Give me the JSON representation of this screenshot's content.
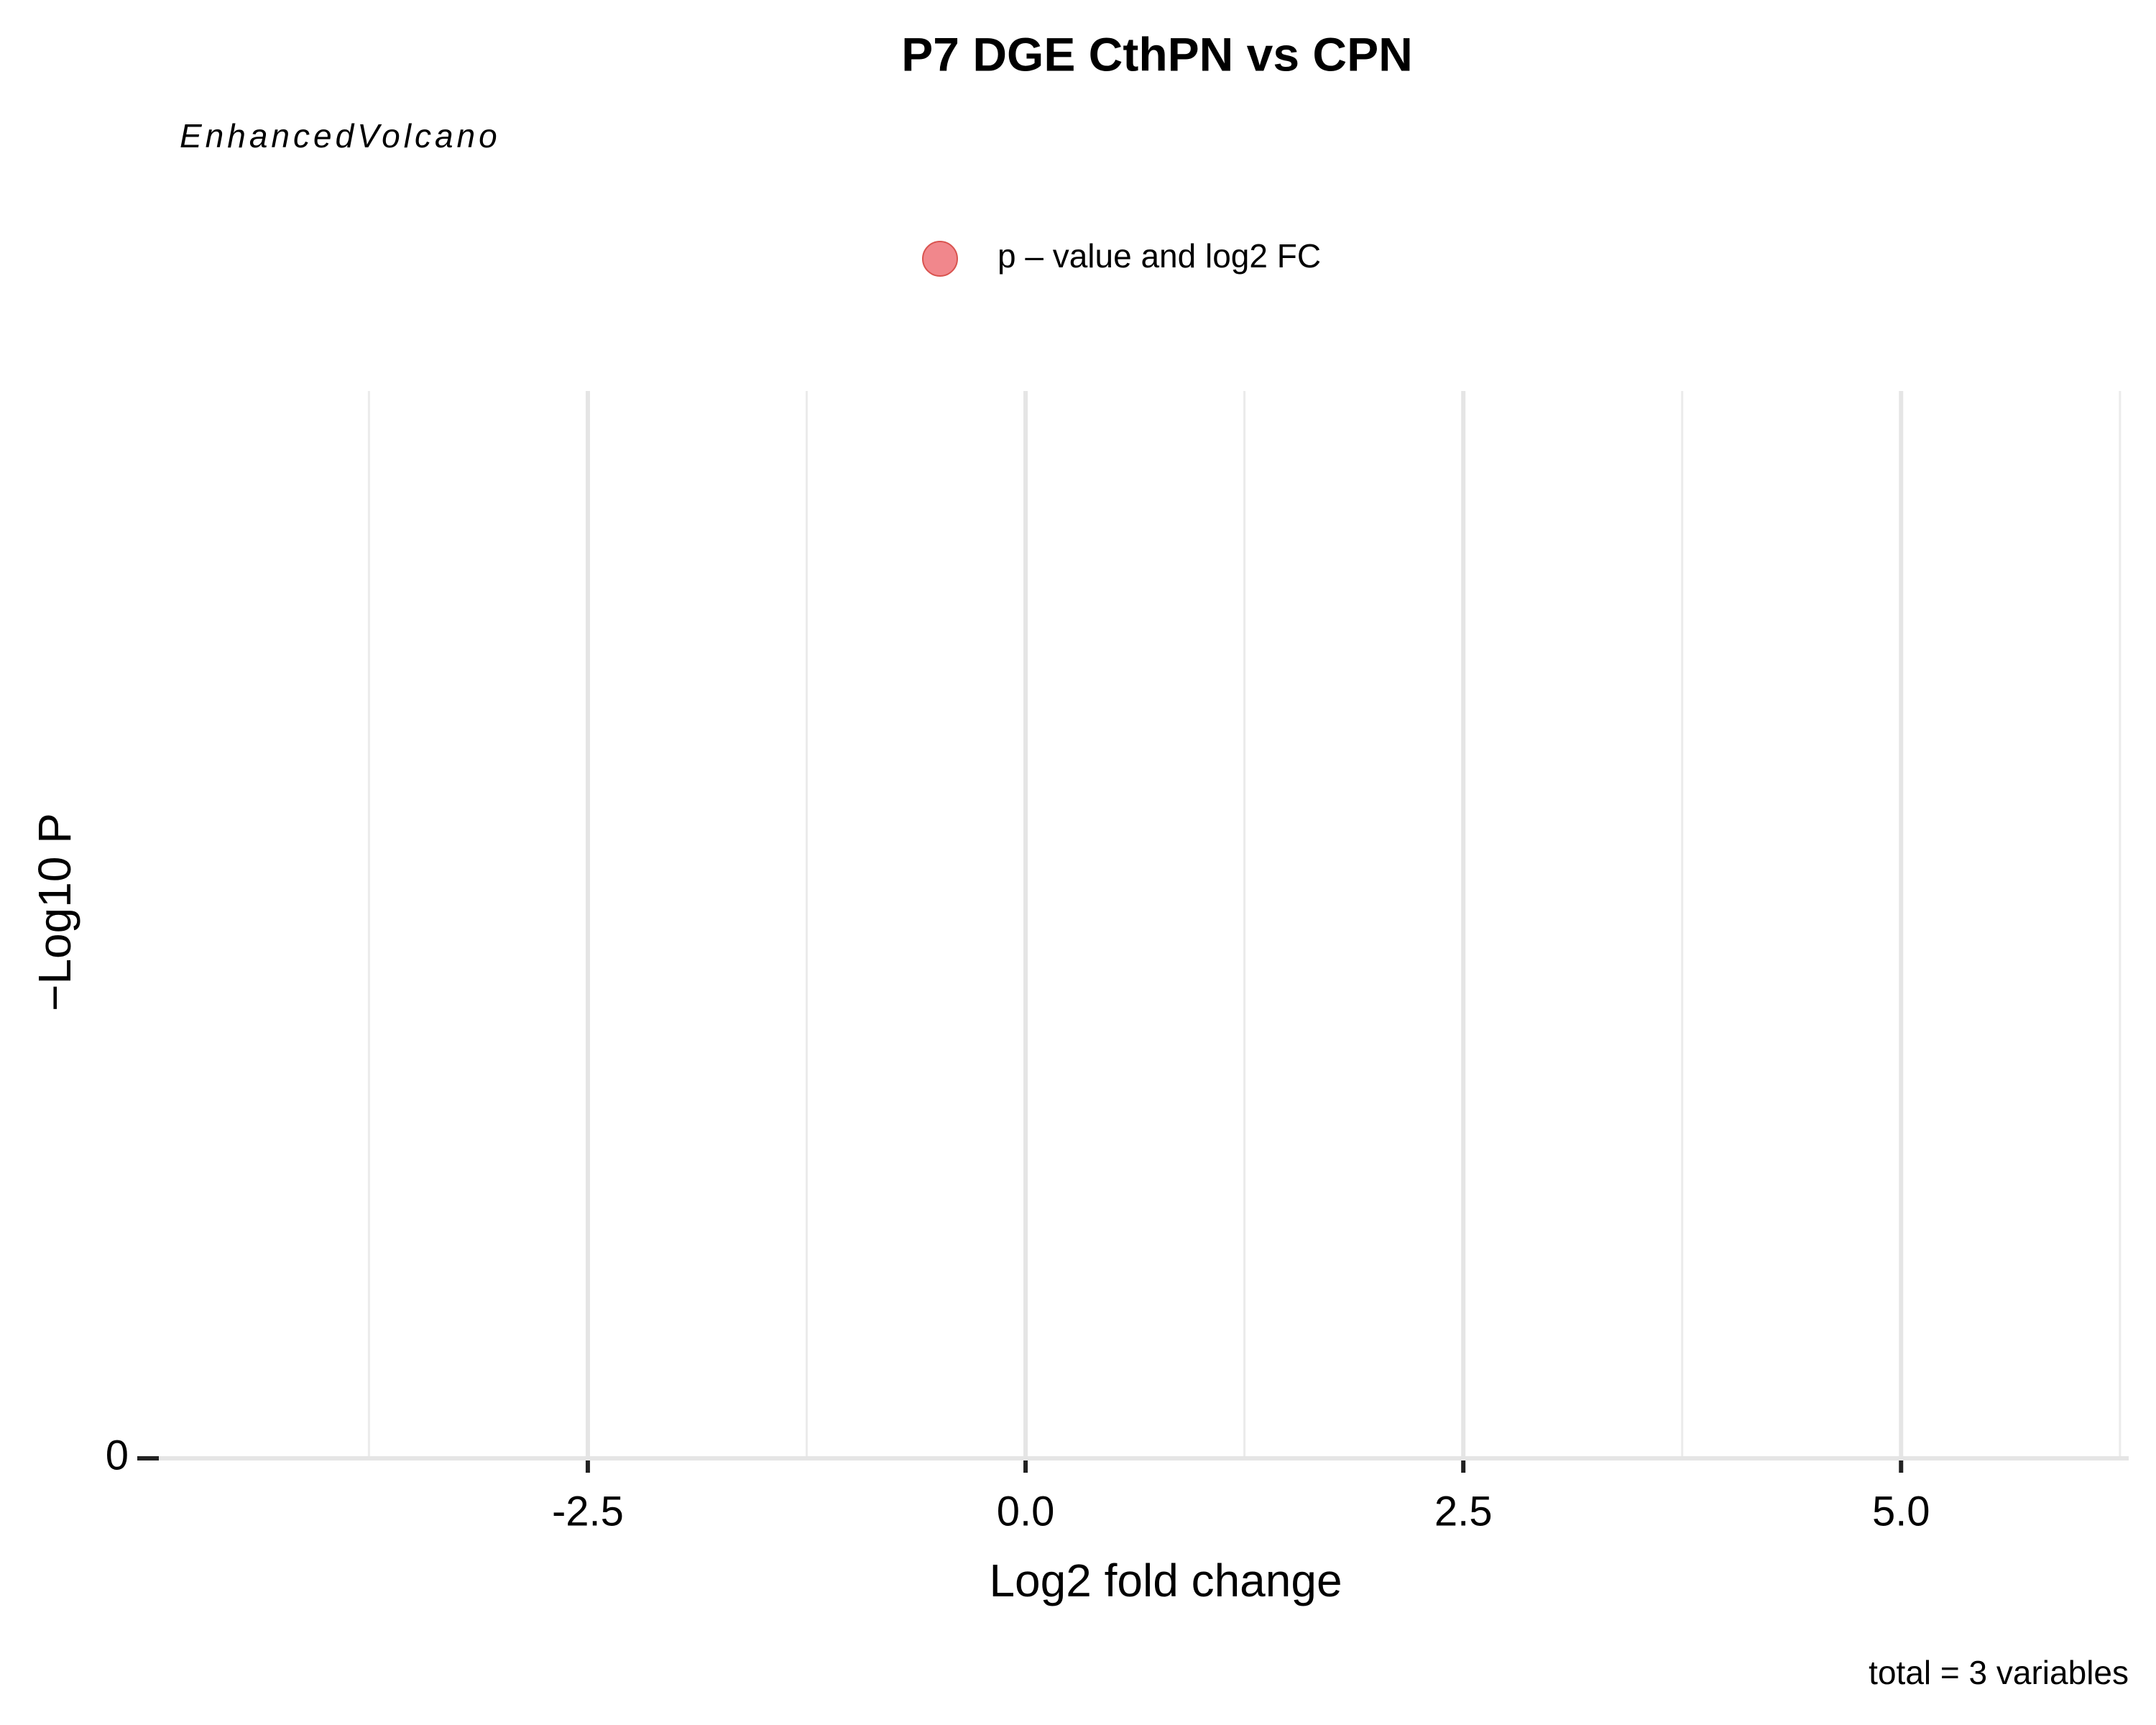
{
  "chart_data": {
    "type": "scatter",
    "title": "P7 DGE CthPN vs CPN",
    "subtitle": "EnhancedVolcano",
    "x_label": "Log2 fold change",
    "y_label": "−Log10 P",
    "caption": "total = 3 variables",
    "series": [
      {
        "name": "p – value and log2 FC",
        "color": "#f07a80",
        "x": [],
        "values": []
      }
    ],
    "xlim": [
      -4.95,
      6.3
    ],
    "xticks": [
      -2.5,
      {
        "value": 0,
        "label": "0.0"
      },
      2.5,
      {
        "value": 5,
        "label": "5.0"
      }
    ],
    "xminor": [
      -3.75,
      -1.25,
      1.25,
      3.75,
      6.25
    ],
    "ylim": [
      0,
      1
    ],
    "yticks": [
      0
    ],
    "grid": true,
    "legend": "top"
  }
}
